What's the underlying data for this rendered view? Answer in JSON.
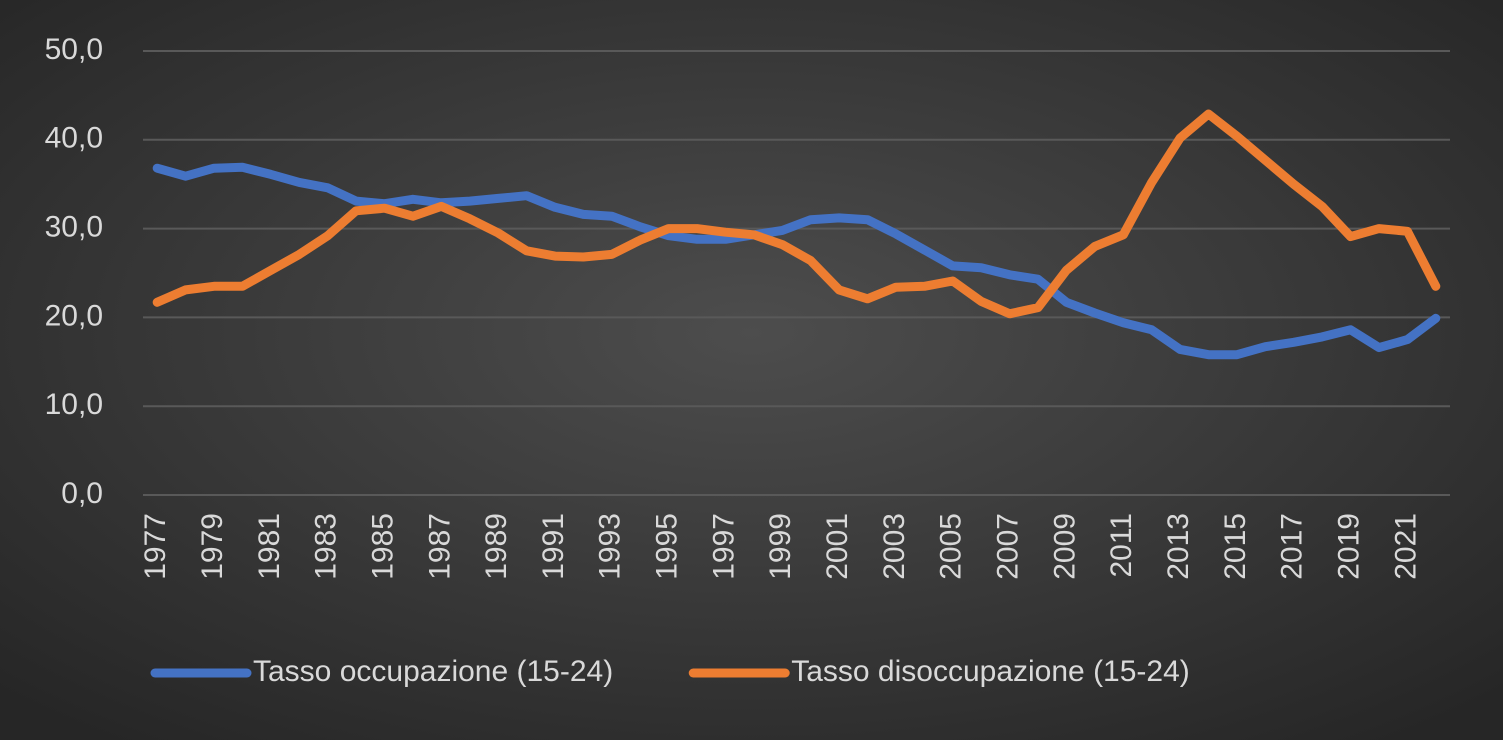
{
  "chart_data": {
    "type": "line",
    "categories": [
      "1977",
      null,
      "1979",
      null,
      "1981",
      null,
      "1983",
      null,
      "1985",
      null,
      "1987",
      null,
      "1989",
      null,
      "1991",
      null,
      "1993",
      null,
      "1995",
      null,
      "1997",
      null,
      "1999",
      null,
      "2001",
      null,
      "2003",
      null,
      "2005",
      null,
      "2007",
      null,
      "2009",
      null,
      "2011",
      null,
      "2013",
      null,
      "2015",
      null,
      "2017",
      null,
      "2019",
      null,
      "2021",
      null
    ],
    "series": [
      {
        "name": "Tasso occupazione (15-24)",
        "color": "#4472c4",
        "values": [
          36.8,
          35.9,
          36.8,
          36.9,
          36.1,
          35.2,
          34.6,
          33.1,
          32.8,
          33.3,
          32.9,
          33.1,
          33.4,
          33.7,
          32.4,
          31.6,
          31.4,
          30.2,
          29.2,
          28.8,
          28.8,
          29.3,
          29.8,
          31.0,
          31.2,
          31.0,
          29.4,
          27.6,
          25.8,
          25.6,
          24.8,
          24.3,
          21.7,
          20.5,
          19.4,
          18.6,
          16.4,
          15.8,
          15.8,
          16.7,
          17.2,
          17.8,
          18.6,
          16.6,
          17.5,
          19.9
        ]
      },
      {
        "name": "Tasso disoccupazione (15-24)",
        "color": "#ed7d31",
        "values": [
          21.7,
          23.1,
          23.5,
          23.5,
          25.3,
          27.1,
          29.2,
          32.0,
          32.3,
          31.4,
          32.5,
          31.1,
          29.5,
          27.5,
          26.9,
          26.8,
          27.1,
          28.7,
          30.0,
          30.0,
          29.6,
          29.3,
          28.2,
          26.4,
          23.1,
          22.1,
          23.4,
          23.5,
          24.1,
          21.8,
          20.4,
          21.1,
          25.3,
          28.0,
          29.3,
          35.2,
          40.2,
          42.9,
          40.4,
          37.7,
          35.0,
          32.5,
          29.1,
          30.0,
          29.7,
          23.5
        ]
      }
    ],
    "ylim": [
      0,
      50
    ],
    "yticks": [
      {
        "value": 0,
        "label": "0,0"
      },
      {
        "value": 10,
        "label": "10,0"
      },
      {
        "value": 20,
        "label": "20,0"
      },
      {
        "value": 30,
        "label": "30,0"
      },
      {
        "value": 40,
        "label": "40,0"
      },
      {
        "value": 50,
        "label": "50,0"
      }
    ],
    "grid": true,
    "legend": "bottom"
  }
}
